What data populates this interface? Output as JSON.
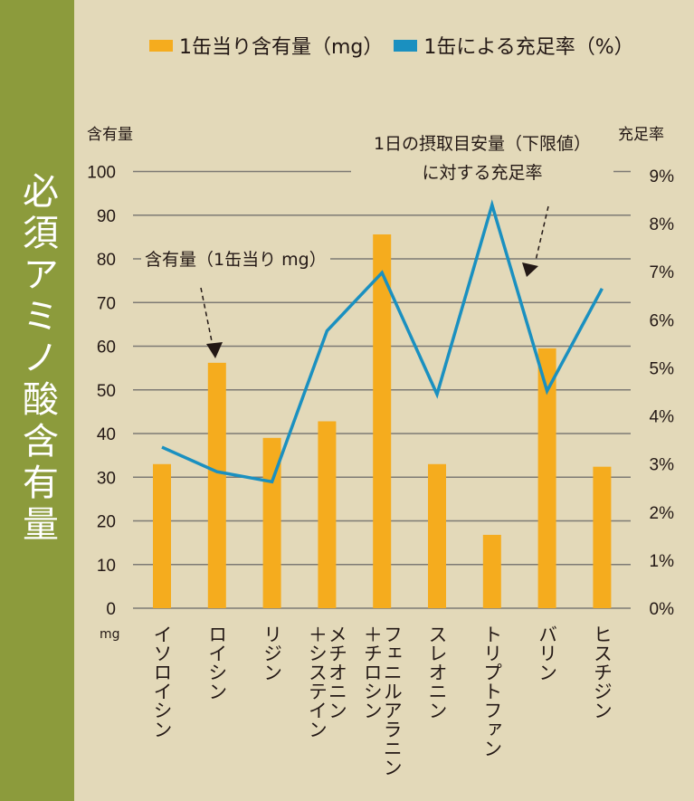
{
  "sidebar_title": "必須アミノ酸含有量",
  "chart_data": {
    "type": "bar+line",
    "categories": [
      "イソロイシン",
      "ロイシン",
      "リジン",
      "メチオニン\n＋システイン",
      "フェニルアラニン\n＋チロシン",
      "スレオニン",
      "トリプトファン",
      "バリン",
      "ヒスチジン"
    ],
    "series": [
      {
        "name": "1缶当り含有量（mg）",
        "type": "bar",
        "axis": "left",
        "color": "#f5ac1e",
        "values": [
          33,
          56.2,
          39,
          42.8,
          85.6,
          33,
          16.8,
          59.5,
          32.4
        ]
      },
      {
        "name": "1缶による充足率（%）",
        "type": "line",
        "axis": "right",
        "color": "#1a90c0",
        "values": [
          3.35,
          2.84,
          2.63,
          5.77,
          6.98,
          4.45,
          8.39,
          4.52,
          6.65
        ]
      }
    ],
    "left_axis": {
      "title": "含有量",
      "unit": "mg",
      "ylim": [
        0,
        100
      ],
      "ticks": [
        "0",
        "10",
        "20",
        "30",
        "40",
        "50",
        "60",
        "70",
        "80",
        "90",
        "100"
      ]
    },
    "right_axis": {
      "title": "充足率",
      "ylim": [
        0,
        9
      ],
      "ticks": [
        "0%",
        "1%",
        "2%",
        "3%",
        "4%",
        "5%",
        "6%",
        "7%",
        "8%",
        "9%"
      ]
    },
    "grid": true,
    "legend_position": "top",
    "annotations": {
      "bar_note": "含有量（1缶当り mg）",
      "line_note_1": "1日の摂取目安量（下限値）",
      "line_note_2": "に対する充足率"
    }
  }
}
